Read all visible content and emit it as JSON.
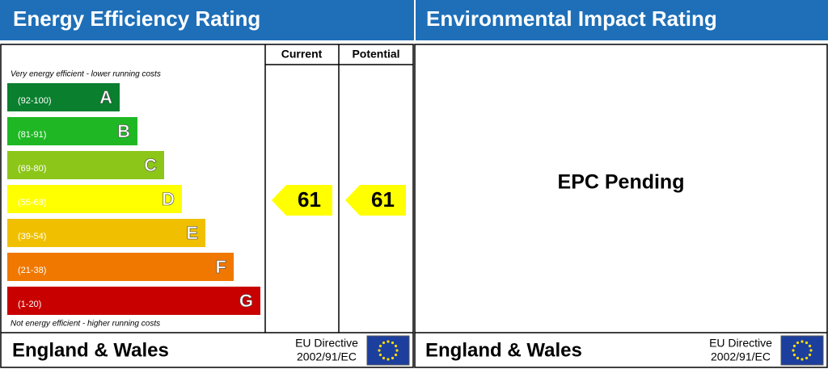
{
  "energy_efficiency": {
    "title": "Energy Efficiency Rating",
    "column_current": "Current",
    "column_potential": "Potential",
    "top_note": "Very energy efficient - lower running costs",
    "bottom_note": "Not energy efficient - higher running costs",
    "bands": [
      {
        "letter": "A",
        "range": "(92-100)",
        "color": "#0a7f2e"
      },
      {
        "letter": "B",
        "range": "(81-91)",
        "color": "#1fb824"
      },
      {
        "letter": "C",
        "range": "(69-80)",
        "color": "#8cc618"
      },
      {
        "letter": "D",
        "range": "(55-68)",
        "color": "#ffff00"
      },
      {
        "letter": "E",
        "range": "(39-54)",
        "color": "#f0c000"
      },
      {
        "letter": "F",
        "range": "(21-38)",
        "color": "#f07800"
      },
      {
        "letter": "G",
        "range": "(1-20)",
        "color": "#c80000"
      }
    ],
    "current": 61,
    "potential": 61,
    "footer": {
      "region": "England & Wales",
      "directive": "EU Directive",
      "directive_number": "2002/91/EC"
    }
  },
  "environmental_impact": {
    "title": "Environmental Impact Rating",
    "status": "EPC Pending",
    "footer": {
      "region": "England & Wales",
      "directive": "EU Directive",
      "directive_number": "2002/91/EC"
    }
  }
}
